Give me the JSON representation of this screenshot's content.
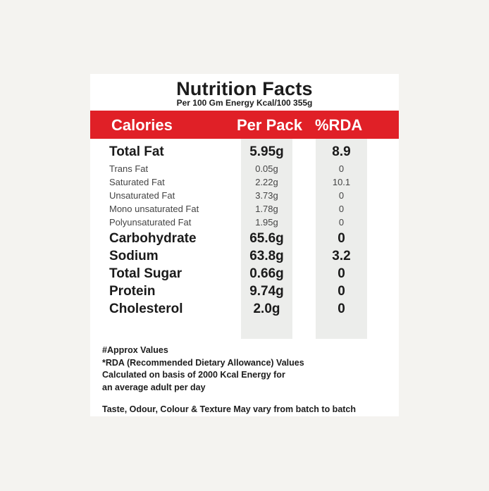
{
  "label": {
    "title": "Nutrition Facts",
    "subtitle": "Per 100 Gm Energy Kcal/100 355g",
    "header": {
      "col1": "Calories",
      "col2": "Per Pack",
      "col3": "%RDA"
    },
    "rows": [
      {
        "name": "Total Fat",
        "per_pack": "5.95g",
        "rda": "8.9"
      },
      {
        "name": "Trans Fat",
        "per_pack": "0.05g",
        "rda": "0"
      },
      {
        "name": "Saturated Fat",
        "per_pack": "2.22g",
        "rda": "10.1"
      },
      {
        "name": "Unsaturated Fat",
        "per_pack": "3.73g",
        "rda": "0"
      },
      {
        "name": "Mono unsaturated Fat",
        "per_pack": "1.78g",
        "rda": "0"
      },
      {
        "name": "Polyunsaturated Fat",
        "per_pack": "1.95g",
        "rda": "0"
      },
      {
        "name": "Carbohydrate",
        "per_pack": "65.6g",
        "rda": "0"
      },
      {
        "name": "Sodium",
        "per_pack": "63.8g",
        "rda": "3.2"
      },
      {
        "name": "Total Sugar",
        "per_pack": "0.66g",
        "rda": "0"
      },
      {
        "name": "Protein",
        "per_pack": "9.74g",
        "rda": "0"
      },
      {
        "name": "Cholesterol",
        "per_pack": "2.0g",
        "rda": "0"
      }
    ],
    "footnotes": [
      "#Approx Values",
      "*RDA (Recommended Dietary Allowance) Values",
      "Calculated on basis of 2000 Kcal Energy for",
      "an average adult per day"
    ],
    "disclaimer": "Taste, Odour, Colour & Texture May vary from batch to batch"
  },
  "colors": {
    "header_red": "#e02027",
    "column_shade": "#ecedeb",
    "background": "#f4f3f0"
  }
}
